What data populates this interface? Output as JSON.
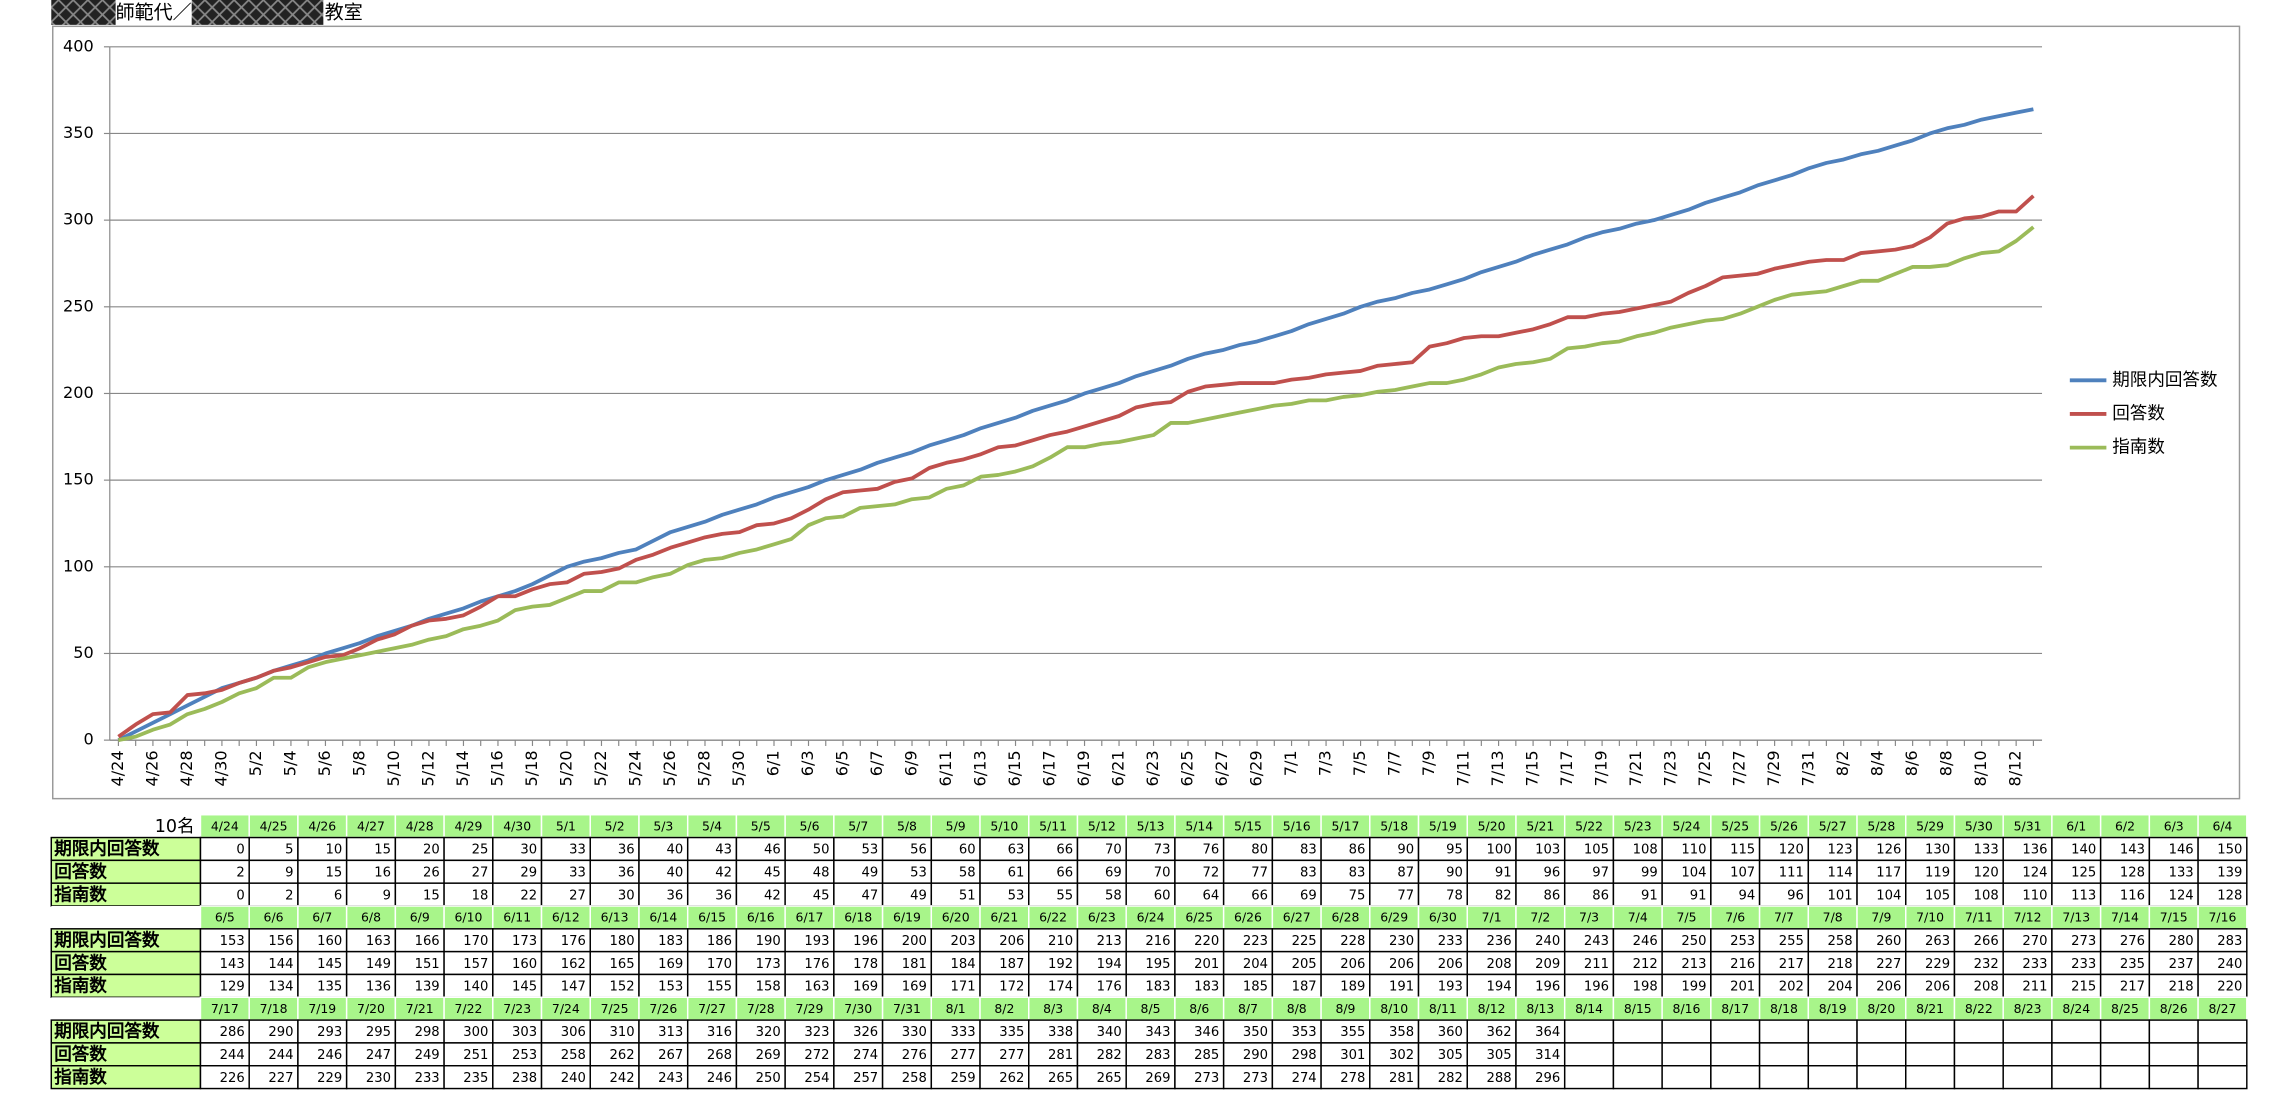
{
  "chart_data": {
    "type": "line",
    "title_a": "師範代／",
    "title_b": "教室",
    "categories": [
      "4/24",
      null,
      "4/26",
      null,
      "4/28",
      null,
      "4/30",
      null,
      "5/2",
      null,
      "5/4",
      null,
      "5/6",
      null,
      "5/8",
      null,
      "5/10",
      null,
      "5/12",
      null,
      "5/14",
      null,
      "5/16",
      null,
      "5/18",
      null,
      "5/20",
      null,
      "5/22",
      null,
      "5/24",
      null,
      "5/26",
      null,
      "5/28",
      null,
      "5/30",
      null,
      "6/1",
      null,
      "6/3",
      null,
      "6/5",
      null,
      "6/7",
      null,
      "6/9",
      null,
      "6/11",
      null,
      "6/13",
      null,
      "6/15",
      null,
      "6/17",
      null,
      "6/19",
      null,
      "6/21",
      null,
      "6/23",
      null,
      "6/25",
      null,
      "6/27",
      null,
      "6/29",
      null,
      "7/1",
      null,
      "7/3",
      null,
      "7/5",
      null,
      "7/7",
      null,
      "7/9",
      null,
      "7/11",
      null,
      "7/13",
      null,
      "7/15",
      null,
      "7/17",
      null,
      "7/19",
      null,
      "7/21",
      null,
      "7/23",
      null,
      "7/25",
      null,
      "7/27",
      null,
      "7/29",
      null,
      "7/31",
      null,
      "8/2",
      null,
      "8/4",
      null,
      "8/6",
      null,
      "8/8",
      null,
      "8/10",
      null,
      "8/12",
      null
    ],
    "ylim": [
      0,
      400
    ],
    "yticks": [
      0,
      50,
      100,
      150,
      200,
      250,
      300,
      350,
      400
    ],
    "grid": true,
    "legend": "right",
    "series": [
      {
        "name": "期限内回答数",
        "color": "#4f81bd",
        "values": [
          0,
          5,
          10,
          15,
          20,
          25,
          30,
          33,
          36,
          40,
          43,
          46,
          50,
          53,
          56,
          60,
          63,
          66,
          70,
          73,
          76,
          80,
          83,
          86,
          90,
          95,
          100,
          103,
          105,
          108,
          110,
          115,
          120,
          123,
          126,
          130,
          133,
          136,
          140,
          143,
          146,
          150,
          153,
          156,
          160,
          163,
          166,
          170,
          173,
          176,
          180,
          183,
          186,
          190,
          193,
          196,
          200,
          203,
          206,
          210,
          213,
          216,
          220,
          223,
          225,
          228,
          230,
          233,
          236,
          240,
          243,
          246,
          250,
          253,
          255,
          258,
          260,
          263,
          266,
          270,
          273,
          276,
          280,
          283,
          286,
          290,
          293,
          295,
          298,
          300,
          303,
          306,
          310,
          313,
          316,
          320,
          323,
          326,
          330,
          333,
          335,
          338,
          340,
          343,
          346,
          350,
          353,
          355,
          358,
          360,
          362,
          364
        ]
      },
      {
        "name": "回答数",
        "color": "#c0504d",
        "values": [
          2,
          9,
          15,
          16,
          26,
          27,
          29,
          33,
          36,
          40,
          42,
          45,
          48,
          49,
          53,
          58,
          61,
          66,
          69,
          70,
          72,
          77,
          83,
          83,
          87,
          90,
          91,
          96,
          97,
          99,
          104,
          107,
          111,
          114,
          117,
          119,
          120,
          124,
          125,
          128,
          133,
          139,
          143,
          144,
          145,
          149,
          151,
          157,
          160,
          162,
          165,
          169,
          170,
          173,
          176,
          178,
          181,
          184,
          187,
          192,
          194,
          195,
          201,
          204,
          205,
          206,
          206,
          206,
          208,
          209,
          211,
          212,
          213,
          216,
          217,
          218,
          227,
          229,
          232,
          233,
          233,
          235,
          237,
          240,
          244,
          244,
          246,
          247,
          249,
          251,
          253,
          258,
          262,
          267,
          268,
          269,
          272,
          274,
          276,
          277,
          277,
          281,
          282,
          283,
          285,
          290,
          298,
          301,
          302,
          305,
          305,
          314
        ]
      },
      {
        "name": "指南数",
        "color": "#9bbb59",
        "values": [
          0,
          2,
          6,
          9,
          15,
          18,
          22,
          27,
          30,
          36,
          36,
          42,
          45,
          47,
          49,
          51,
          53,
          55,
          58,
          60,
          64,
          66,
          69,
          75,
          77,
          78,
          82,
          86,
          86,
          91,
          91,
          94,
          96,
          101,
          104,
          105,
          108,
          110,
          113,
          116,
          124,
          128,
          129,
          134,
          135,
          136,
          139,
          140,
          145,
          147,
          152,
          153,
          155,
          158,
          163,
          169,
          169,
          171,
          172,
          174,
          176,
          183,
          183,
          185,
          187,
          189,
          191,
          193,
          194,
          196,
          196,
          198,
          199,
          201,
          202,
          204,
          206,
          206,
          208,
          211,
          215,
          217,
          218,
          220,
          226,
          227,
          229,
          230,
          233,
          235,
          238,
          240,
          242,
          243,
          246,
          250,
          254,
          257,
          258,
          259,
          262,
          265,
          265,
          269,
          273,
          273,
          274,
          278,
          281,
          282,
          288,
          296
        ]
      }
    ]
  },
  "table": {
    "corner": "10名",
    "row_labels": [
      "期限内回答数",
      "回答数",
      "指南数"
    ],
    "dates": [
      "4/24",
      "4/25",
      "4/26",
      "4/27",
      "4/28",
      "4/29",
      "4/30",
      "5/1",
      "5/2",
      "5/3",
      "5/4",
      "5/5",
      "5/6",
      "5/7",
      "5/8",
      "5/9",
      "5/10",
      "5/11",
      "5/12",
      "5/13",
      "5/14",
      "5/15",
      "5/16",
      "5/17",
      "5/18",
      "5/19",
      "5/20",
      "5/21",
      "5/22",
      "5/23",
      "5/24",
      "5/25",
      "5/26",
      "5/27",
      "5/28",
      "5/29",
      "5/30",
      "5/31",
      "6/1",
      "6/2",
      "6/3",
      "6/4",
      "6/5",
      "6/6",
      "6/7",
      "6/8",
      "6/9",
      "6/10",
      "6/11",
      "6/12",
      "6/13",
      "6/14",
      "6/15",
      "6/16",
      "6/17",
      "6/18",
      "6/19",
      "6/20",
      "6/21",
      "6/22",
      "6/23",
      "6/24",
      "6/25",
      "6/26",
      "6/27",
      "6/28",
      "6/29",
      "6/30",
      "7/1",
      "7/2",
      "7/3",
      "7/4",
      "7/5",
      "7/6",
      "7/7",
      "7/8",
      "7/9",
      "7/10",
      "7/11",
      "7/12",
      "7/13",
      "7/14",
      "7/15",
      "7/16",
      "7/17",
      "7/18",
      "7/19",
      "7/20",
      "7/21",
      "7/22",
      "7/23",
      "7/24",
      "7/25",
      "7/26",
      "7/27",
      "7/28",
      "7/29",
      "7/30",
      "7/31",
      "8/1",
      "8/2",
      "8/3",
      "8/4",
      "8/5",
      "8/6",
      "8/7",
      "8/8",
      "8/9",
      "8/10",
      "8/11",
      "8/12",
      "8/13",
      "8/14",
      "8/15",
      "8/16",
      "8/17",
      "8/18",
      "8/19",
      "8/20",
      "8/21",
      "8/22",
      "8/23",
      "8/24",
      "8/25",
      "8/26",
      "8/27"
    ],
    "rows": [
      [
        0,
        5,
        10,
        15,
        20,
        25,
        30,
        33,
        36,
        40,
        43,
        46,
        50,
        53,
        56,
        60,
        63,
        66,
        70,
        73,
        76,
        80,
        83,
        86,
        90,
        95,
        100,
        103,
        105,
        108,
        110,
        115,
        120,
        123,
        126,
        130,
        133,
        136,
        140,
        143,
        146,
        150,
        153,
        156,
        160,
        163,
        166,
        170,
        173,
        176,
        180,
        183,
        186,
        190,
        193,
        196,
        200,
        203,
        206,
        210,
        213,
        216,
        220,
        223,
        225,
        228,
        230,
        233,
        236,
        240,
        243,
        246,
        250,
        253,
        255,
        258,
        260,
        263,
        266,
        270,
        273,
        276,
        280,
        283,
        286,
        290,
        293,
        295,
        298,
        300,
        303,
        306,
        310,
        313,
        316,
        320,
        323,
        326,
        330,
        333,
        335,
        338,
        340,
        343,
        346,
        350,
        353,
        355,
        358,
        360,
        362,
        364,
        null,
        null,
        null,
        null,
        null,
        null,
        null,
        null,
        null,
        null,
        null,
        null,
        null,
        null
      ],
      [
        2,
        9,
        15,
        16,
        26,
        27,
        29,
        33,
        36,
        40,
        42,
        45,
        48,
        49,
        53,
        58,
        61,
        66,
        69,
        70,
        72,
        77,
        83,
        83,
        87,
        90,
        91,
        96,
        97,
        99,
        104,
        107,
        111,
        114,
        117,
        119,
        120,
        124,
        125,
        128,
        133,
        139,
        143,
        144,
        145,
        149,
        151,
        157,
        160,
        162,
        165,
        169,
        170,
        173,
        176,
        178,
        181,
        184,
        187,
        192,
        194,
        195,
        201,
        204,
        205,
        206,
        206,
        206,
        208,
        209,
        211,
        212,
        213,
        216,
        217,
        218,
        227,
        229,
        232,
        233,
        233,
        235,
        237,
        240,
        244,
        244,
        246,
        247,
        249,
        251,
        253,
        258,
        262,
        267,
        268,
        269,
        272,
        274,
        276,
        277,
        277,
        281,
        282,
        283,
        285,
        290,
        298,
        301,
        302,
        305,
        305,
        314,
        null,
        null,
        null,
        null,
        null,
        null,
        null,
        null,
        null,
        null,
        null,
        null,
        null,
        null
      ],
      [
        0,
        2,
        6,
        9,
        15,
        18,
        22,
        27,
        30,
        36,
        36,
        42,
        45,
        47,
        49,
        51,
        53,
        55,
        58,
        60,
        64,
        66,
        69,
        75,
        77,
        78,
        82,
        86,
        86,
        91,
        91,
        94,
        96,
        101,
        104,
        105,
        108,
        110,
        113,
        116,
        124,
        128,
        129,
        134,
        135,
        136,
        139,
        140,
        145,
        147,
        152,
        153,
        155,
        158,
        163,
        169,
        169,
        171,
        172,
        174,
        176,
        183,
        183,
        185,
        187,
        189,
        191,
        193,
        194,
        196,
        196,
        198,
        199,
        201,
        202,
        204,
        206,
        206,
        208,
        211,
        215,
        217,
        218,
        220,
        226,
        227,
        229,
        230,
        233,
        235,
        238,
        240,
        242,
        243,
        246,
        250,
        254,
        257,
        258,
        259,
        262,
        265,
        265,
        269,
        273,
        273,
        274,
        278,
        281,
        282,
        288,
        296,
        null,
        null,
        null,
        null,
        null,
        null,
        null,
        null,
        null,
        null,
        null,
        null,
        null,
        null
      ]
    ]
  }
}
